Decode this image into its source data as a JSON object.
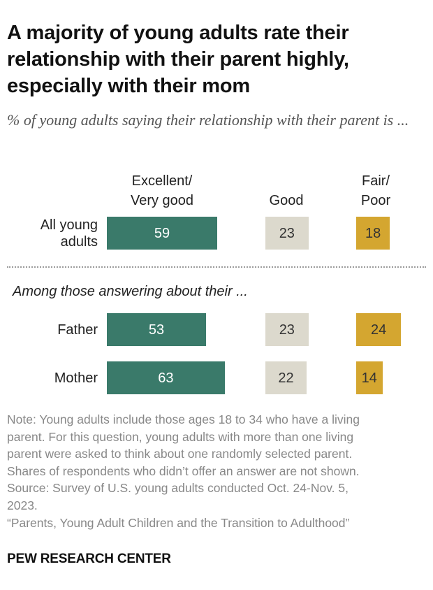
{
  "title": "A majority of young adults rate their relationship with their parent highly, especially with their mom",
  "subtitle": "% of young adults saying their relationship with their parent is ...",
  "chart_data": {
    "type": "bar",
    "orientation": "horizontal",
    "stacked": false,
    "columns": [
      {
        "name": "Excellent/ Very good",
        "lines": [
          "Excellent/",
          "Very good"
        ],
        "color": "#3a7a6a"
      },
      {
        "name": "Good",
        "lines": [
          "Good"
        ],
        "color": "#dcd9cd"
      },
      {
        "name": "Fair/ Poor",
        "lines": [
          "Fair/",
          "Poor"
        ],
        "color": "#d4a630"
      }
    ],
    "categories": [
      "All young adults",
      "Father",
      "Mother"
    ],
    "category_lines": [
      [
        "All young",
        "adults"
      ],
      [
        "Father"
      ],
      [
        "Mother"
      ]
    ],
    "series": [
      {
        "name": "Excellent/ Very good",
        "values": [
          59,
          53,
          63
        ]
      },
      {
        "name": "Good",
        "values": [
          23,
          23,
          22
        ]
      },
      {
        "name": "Fair/ Poor",
        "values": [
          18,
          24,
          14
        ]
      }
    ],
    "section_label": "Among those answering about their ...",
    "value_label_colors": [
      "#ffffff",
      "#333333",
      "#333333"
    ]
  },
  "notes": [
    "Note: Young adults include those ages 18 to 34 who have a living",
    "parent. For this question, young adults with more than one living",
    "parent were asked to think about one randomly selected parent.",
    "Shares of respondents who didn’t offer an answer are not shown.",
    "Source: Survey of U.S. young adults conducted Oct. 24-Nov. 5,",
    "2023.",
    "“Parents, Young Adult Children and the Transition to Adulthood”"
  ],
  "footer": "PEW RESEARCH CENTER"
}
